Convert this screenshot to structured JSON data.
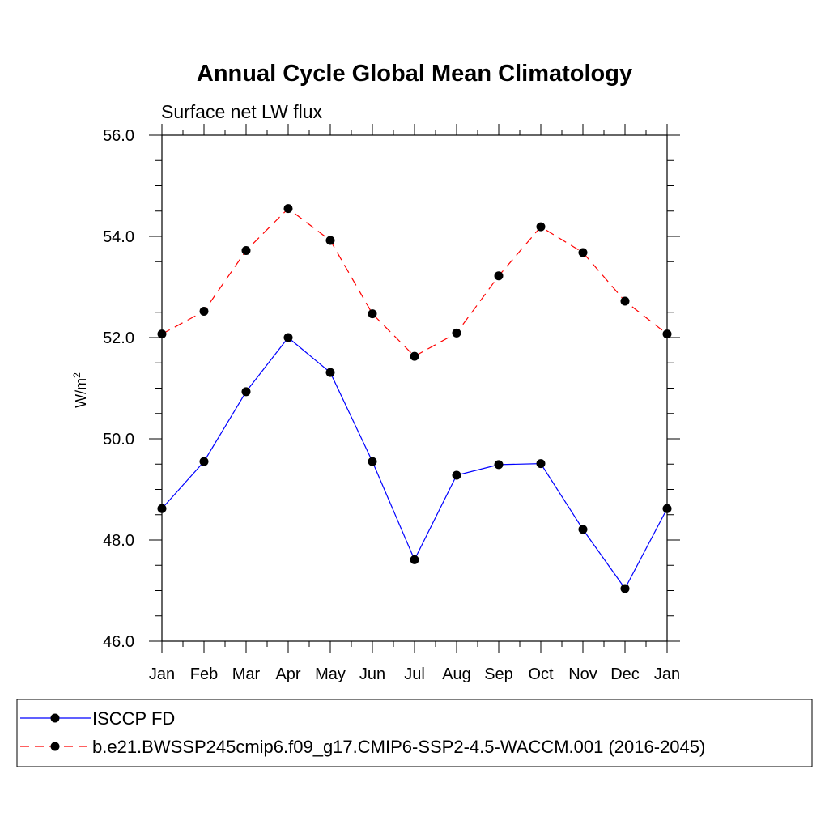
{
  "chart_data": {
    "type": "line",
    "title": "Annual Cycle Global Mean Climatology",
    "subtitle": "Surface net LW flux",
    "xlabel": "",
    "ylabel": "W/m",
    "ylabel_superscript": "2",
    "categories": [
      "Jan",
      "Feb",
      "Mar",
      "Apr",
      "May",
      "Jun",
      "Jul",
      "Aug",
      "Sep",
      "Oct",
      "Nov",
      "Dec",
      "Jan"
    ],
    "ylim": [
      46.0,
      56.0
    ],
    "y_ticks": [
      "46.0",
      "48.0",
      "50.0",
      "52.0",
      "54.0",
      "56.0"
    ],
    "y_tick_values": [
      46,
      48,
      50,
      52,
      54,
      56
    ],
    "grid": false,
    "legend_position": "bottom",
    "series": [
      {
        "name": "ISCCP FD",
        "color": "#0000ff",
        "line_style": "solid",
        "values": [
          48.62,
          49.55,
          50.93,
          52.0,
          51.31,
          49.55,
          47.61,
          49.28,
          49.49,
          49.51,
          48.21,
          47.04,
          48.62
        ]
      },
      {
        "name": "b.e21.BWSSP245cmip6.f09_g17.CMIP6-SSP2-4.5-WACCM.001 (2016-2045)",
        "color": "#ff0000",
        "line_style": "dashed",
        "values": [
          52.07,
          52.52,
          53.72,
          54.55,
          53.92,
          52.47,
          51.63,
          52.09,
          53.22,
          54.19,
          53.68,
          52.72,
          52.07
        ]
      }
    ]
  }
}
